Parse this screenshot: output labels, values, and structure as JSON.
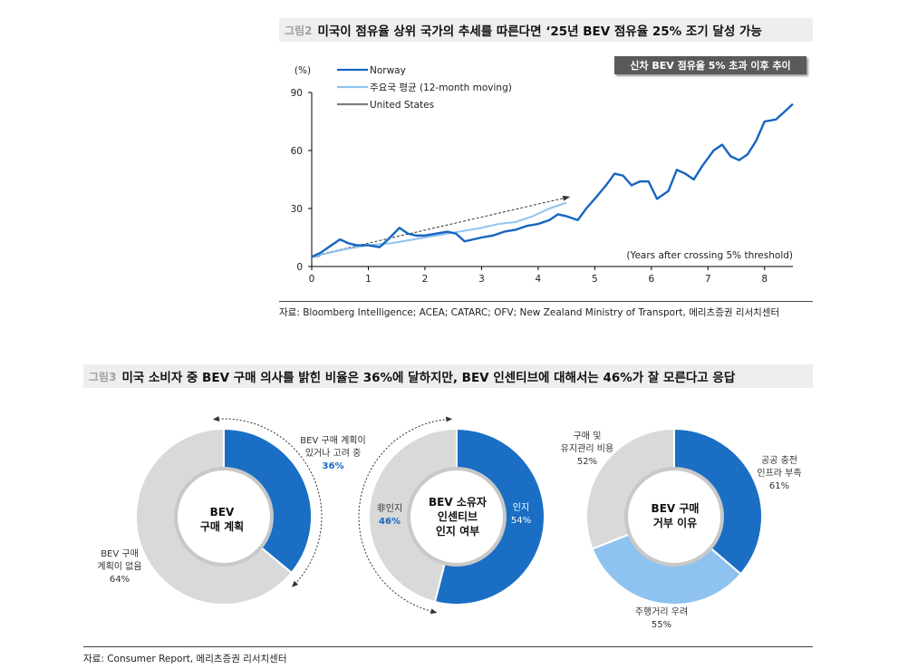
{
  "fig2": {
    "num": "그림2",
    "title": "미국이 점유율 상위 국가의 추세를 따른다면 ‘25년 BEV 점유율 25% 조기 달성 가능",
    "badge": "신차 BEV 점유율 5% 초과 이후 추이",
    "source": "자료: Bloomberg Intelligence; ACEA; CATARC; OFV; New Zealand Ministry of Transport, 메리츠증권 리서치센터"
  },
  "fig3": {
    "num": "그림3",
    "title": "미국 소비자 중 BEV 구매 의사를 밝힌 비율은 36%에 달하지만, BEV 인센티브에 대해서는 46%가 잘 모른다고 응답",
    "source": "자료: Consumer Report, 메리츠증권 리서치센터",
    "donut1": {
      "center": [
        "BEV",
        "구매 계획"
      ],
      "label_a": [
        "BEV 구매 계획이",
        "있거나 고려 중",
        "36%"
      ],
      "label_b": [
        "BEV 구매",
        "계획이 없음",
        "64%"
      ]
    },
    "donut2": {
      "center": [
        "BEV 소유자",
        "인센티브",
        "인지 여부"
      ],
      "label_a": [
        "인지",
        "54%"
      ],
      "label_b": [
        "非인지",
        "46%"
      ]
    },
    "donut3": {
      "center": [
        "BEV 구매",
        "거부 이유"
      ],
      "label_a": [
        "공공 충전",
        "인프라 부족",
        "61%"
      ],
      "label_b": [
        "주행거리 우려",
        "55%"
      ],
      "label_c": [
        "구매 및",
        "유지관리 비용",
        "52%"
      ]
    }
  },
  "chart_data": [
    {
      "type": "line",
      "ylabel": "(%)",
      "xlabel": "(Years after crossing 5% threshold)",
      "xlim": [
        0,
        8.5
      ],
      "ylim": [
        0,
        90
      ],
      "xticks": [
        0,
        1,
        2,
        3,
        4,
        5,
        6,
        7,
        8
      ],
      "yticks": [
        0,
        30,
        60,
        90
      ],
      "grid": false,
      "legend": "top-left",
      "series": [
        {
          "name": "Norway",
          "color": "#1565c0",
          "x": [
            0,
            0.15,
            0.3,
            0.5,
            0.65,
            0.8,
            1.0,
            1.2,
            1.35,
            1.55,
            1.7,
            1.85,
            2.0,
            2.2,
            2.4,
            2.55,
            2.7,
            2.85,
            3.0,
            3.2,
            3.4,
            3.6,
            3.8,
            4.0,
            4.2,
            4.35,
            4.5,
            4.7,
            4.85,
            5.0,
            5.2,
            5.35,
            5.5,
            5.65,
            5.8,
            5.95,
            6.1,
            6.3,
            6.45,
            6.6,
            6.75,
            6.9,
            7.1,
            7.25,
            7.4,
            7.55,
            7.7,
            7.85,
            8.0,
            8.2,
            8.35,
            8.5
          ],
          "values": [
            5,
            7,
            10,
            14,
            12,
            11,
            11,
            10,
            14,
            20,
            17,
            16,
            16,
            17,
            18,
            17,
            13,
            14,
            15,
            16,
            18,
            19,
            21,
            22,
            24,
            27,
            26,
            24,
            30,
            35,
            42,
            48,
            47,
            42,
            44,
            44,
            35,
            39,
            50,
            48,
            45,
            52,
            60,
            63,
            57,
            55,
            58,
            65,
            75,
            76,
            80,
            84
          ]
        },
        {
          "name": "주요국 평균 (12-month moving)",
          "color": "#8ec3f0",
          "x": [
            0,
            0.3,
            0.6,
            1.0,
            1.4,
            1.8,
            2.2,
            2.6,
            3.0,
            3.3,
            3.6,
            3.9,
            4.2,
            4.5
          ],
          "values": [
            5,
            7,
            9,
            11,
            12,
            14,
            16,
            18,
            20,
            22,
            23,
            26,
            30,
            33
          ]
        },
        {
          "name": "United States",
          "color": "#7f7f7f",
          "x": [
            0,
            0.15
          ],
          "values": [
            5,
            5.5
          ]
        }
      ]
    },
    {
      "type": "pie",
      "categories": [
        "BEV 구매 계획이 있거나 고려 중",
        "BEV 구매 계획이 없음"
      ],
      "values": [
        36,
        64
      ],
      "colors": [
        "#1a6fc4",
        "#d9d9d9"
      ]
    },
    {
      "type": "pie",
      "categories": [
        "인지",
        "非인지"
      ],
      "values": [
        54,
        46
      ],
      "colors": [
        "#1a6fc4",
        "#d9d9d9"
      ]
    },
    {
      "type": "pie",
      "categories": [
        "공공 충전 인프라 부족",
        "주행거리 우려",
        "구매 및 유지관리 비용"
      ],
      "values": [
        61,
        55,
        52
      ],
      "colors": [
        "#1a6fc4",
        "#8ec3f0",
        "#d9d9d9"
      ]
    }
  ]
}
